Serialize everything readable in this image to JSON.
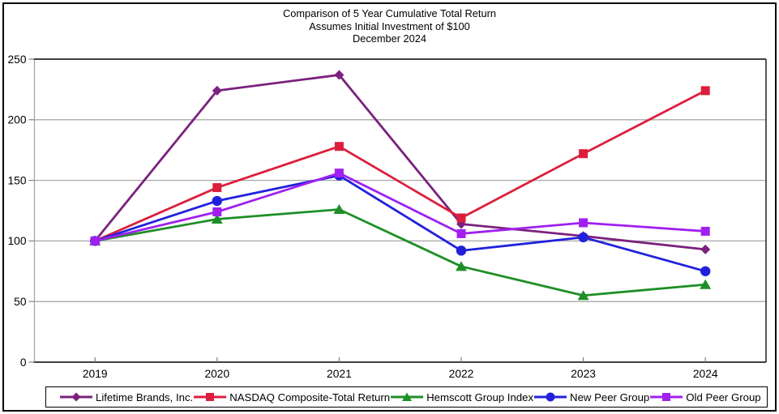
{
  "title": {
    "line1": "Comparison of 5 Year Cumulative Total Return",
    "line2": "Assumes Initial Investment of $100",
    "line3": "December 2024"
  },
  "colors": {
    "background": "#ffffff",
    "frame_border": "#000000",
    "grid": "#a8a8a8",
    "axis_line": "#a8a8a8",
    "axis_edge": "#000000",
    "tick": "#7f7f7f",
    "text": "#000000"
  },
  "chart_data": {
    "type": "line",
    "categories": [
      "2019",
      "2020",
      "2021",
      "2022",
      "2023",
      "2024"
    ],
    "series": [
      {
        "name": "Lifetime Brands, Inc.",
        "color": "#7B217E",
        "marker": "diamond",
        "values": [
          100,
          224,
          237,
          114,
          104,
          93
        ]
      },
      {
        "name": "NASDAQ Composite-Total Return",
        "color": "#DC1E3C",
        "marker": "square",
        "values": [
          100,
          144,
          178,
          119,
          172,
          224
        ]
      },
      {
        "name": "Hemscott Group Index",
        "color": "#1E8F26",
        "marker": "triangle",
        "values": [
          100,
          118,
          126,
          79,
          55,
          64
        ]
      },
      {
        "name": "New Peer Group",
        "color": "#2121DD",
        "marker": "circle",
        "values": [
          100,
          133,
          154,
          92,
          103,
          75
        ]
      },
      {
        "name": "Old Peer Group",
        "color": "#A020F0",
        "marker": "square",
        "values": [
          100,
          124,
          156,
          106,
          115,
          108
        ]
      }
    ],
    "ylim": [
      0,
      250
    ],
    "yticks": [
      0,
      50,
      100,
      150,
      200,
      250
    ],
    "grid": true,
    "legend_position": "bottom"
  }
}
